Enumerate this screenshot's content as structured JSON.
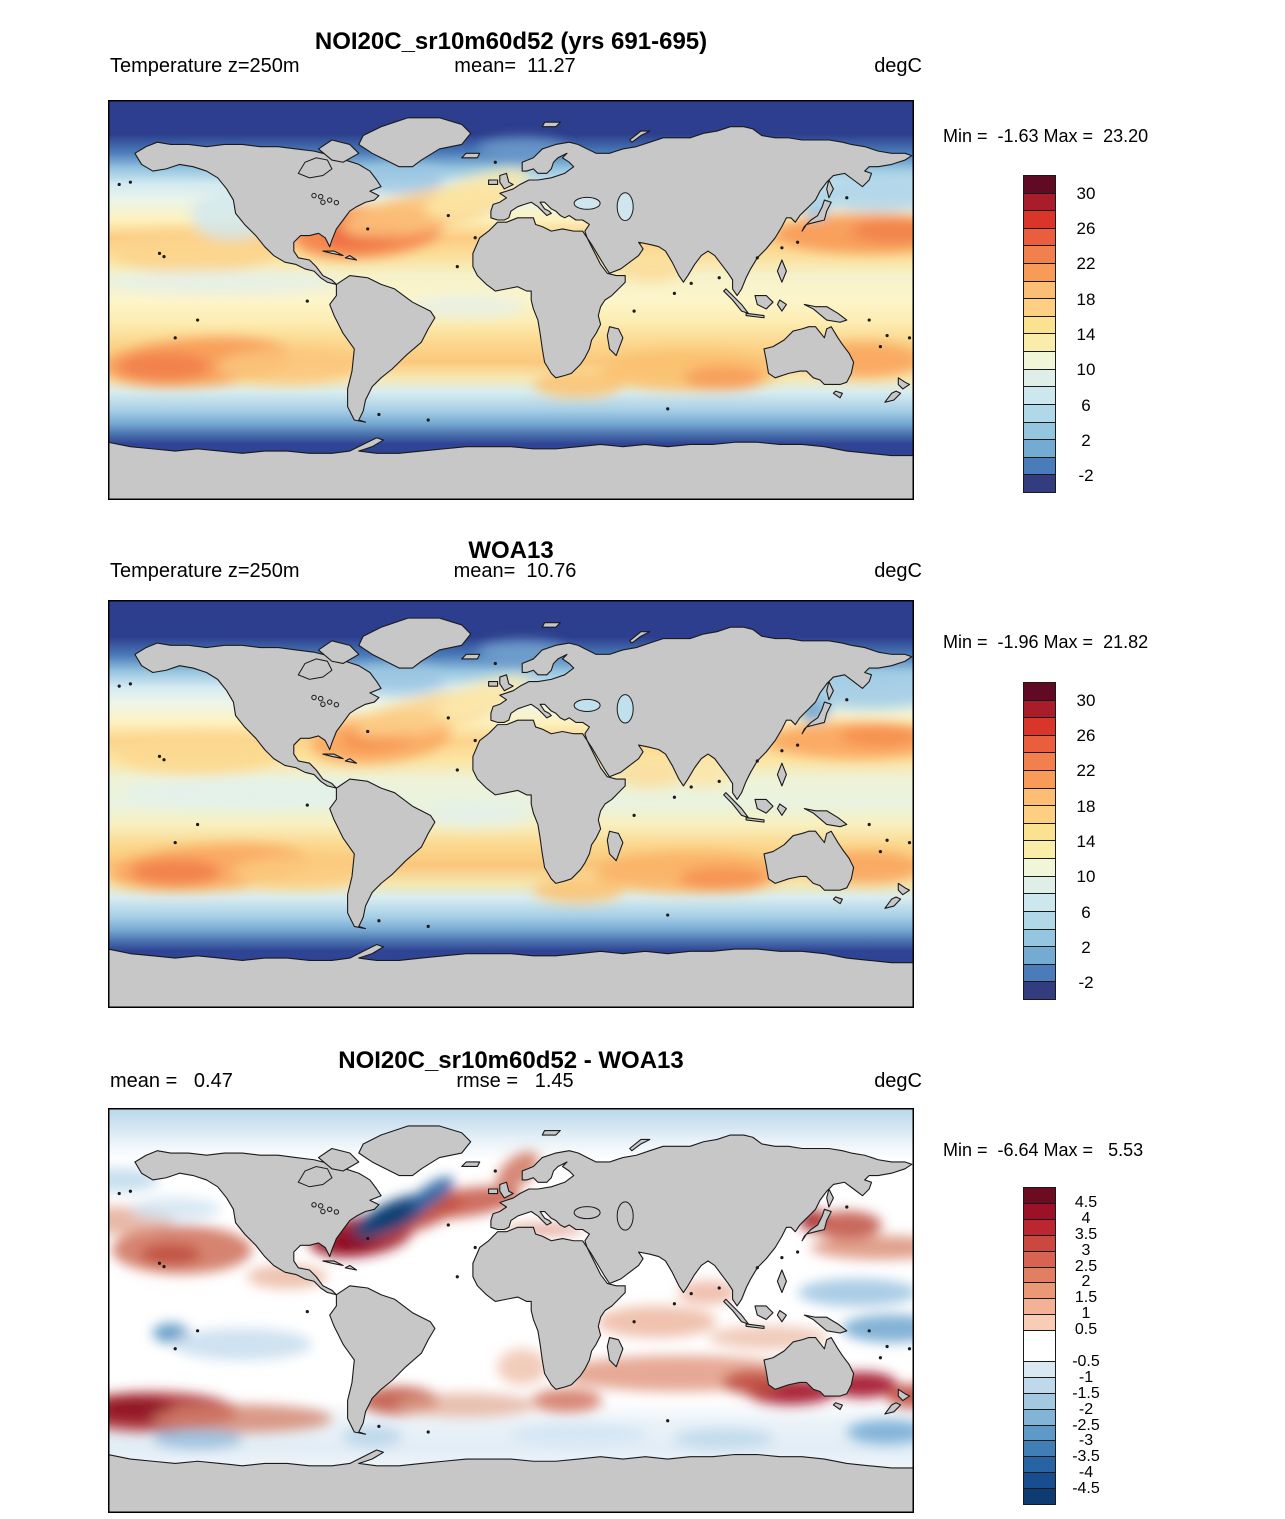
{
  "page": {
    "background": "#ffffff",
    "land_color": "#c7c7c7",
    "coast_color": "#1a1a1a"
  },
  "panels": [
    {
      "title": "NOI20C_sr10m60d52 (yrs 691-695)",
      "left_label": "Temperature z=250m",
      "center_label": "mean=  11.27",
      "right_label": "degC",
      "stats": "Min =  -1.63 Max =  23.20"
    },
    {
      "title": "WOA13",
      "left_label": "Temperature z=250m",
      "center_label": "mean=  10.76",
      "right_label": "degC",
      "stats": "Min =  -1.96 Max =  21.82"
    },
    {
      "title": "NOI20C_sr10m60d52 - WOA13",
      "left_label": "mean =   0.47",
      "center_label": "rmse =   1.45",
      "right_label": "degC",
      "stats": "Min =  -6.64 Max =   5.53"
    }
  ],
  "chart_data": [
    {
      "type": "heatmap",
      "subtype": "filled-contour-world-map",
      "projection": "equirectangular",
      "title": "NOI20C_sr10m60d52 (yrs 691-695)",
      "variable": "Temperature z=250m",
      "units": "degC",
      "stats": {
        "mean": 11.27,
        "min": -1.63,
        "max": 23.2
      },
      "colorbar": {
        "range": [
          -2,
          30
        ],
        "level_step": 2,
        "tick_labels": [
          "30",
          "26",
          "22",
          "18",
          "14",
          "10",
          "6",
          "2",
          "-2"
        ],
        "tick_slots": [
          1,
          3,
          5,
          7,
          9,
          11,
          13,
          15,
          17
        ],
        "slots": 18,
        "cells": [
          {
            "c": "#600a23",
            "h": 1
          },
          {
            "c": "#a91c29",
            "h": 1
          },
          {
            "c": "#d93528",
            "h": 1
          },
          {
            "c": "#ea5e3e",
            "h": 1
          },
          {
            "c": "#f2804d",
            "h": 1
          },
          {
            "c": "#f89a58",
            "h": 1
          },
          {
            "c": "#fcbd74",
            "h": 1
          },
          {
            "c": "#fccf83",
            "h": 1
          },
          {
            "c": "#fbe291",
            "h": 1
          },
          {
            "c": "#f9eda9",
            "h": 1
          },
          {
            "c": "#f2f6d8",
            "h": 1
          },
          {
            "c": "#dfeee7",
            "h": 1
          },
          {
            "c": "#cde7ee",
            "h": 1
          },
          {
            "c": "#b1d8e8",
            "h": 1
          },
          {
            "c": "#95c6df",
            "h": 1
          },
          {
            "c": "#74abd2",
            "h": 1
          },
          {
            "c": "#4a7cba",
            "h": 1
          },
          {
            "c": "#333c7e",
            "h": 1
          }
        ]
      }
    },
    {
      "type": "heatmap",
      "subtype": "filled-contour-world-map",
      "projection": "equirectangular",
      "title": "WOA13",
      "variable": "Temperature z=250m",
      "units": "degC",
      "stats": {
        "mean": 10.76,
        "min": -1.96,
        "max": 21.82
      },
      "colorbar": {
        "range": [
          -2,
          30
        ],
        "level_step": 2,
        "tick_labels": [
          "30",
          "26",
          "22",
          "18",
          "14",
          "10",
          "6",
          "2",
          "-2"
        ],
        "tick_slots": [
          1,
          3,
          5,
          7,
          9,
          11,
          13,
          15,
          17
        ],
        "slots": 18,
        "cells": [
          {
            "c": "#600a23",
            "h": 1
          },
          {
            "c": "#a91c29",
            "h": 1
          },
          {
            "c": "#d93528",
            "h": 1
          },
          {
            "c": "#ea5e3e",
            "h": 1
          },
          {
            "c": "#f2804d",
            "h": 1
          },
          {
            "c": "#f89a58",
            "h": 1
          },
          {
            "c": "#fcbd74",
            "h": 1
          },
          {
            "c": "#fccf83",
            "h": 1
          },
          {
            "c": "#fbe291",
            "h": 1
          },
          {
            "c": "#f9eda9",
            "h": 1
          },
          {
            "c": "#f2f6d8",
            "h": 1
          },
          {
            "c": "#dfeee7",
            "h": 1
          },
          {
            "c": "#cde7ee",
            "h": 1
          },
          {
            "c": "#b1d8e8",
            "h": 1
          },
          {
            "c": "#95c6df",
            "h": 1
          },
          {
            "c": "#74abd2",
            "h": 1
          },
          {
            "c": "#4a7cba",
            "h": 1
          },
          {
            "c": "#333c7e",
            "h": 1
          }
        ]
      }
    },
    {
      "type": "heatmap",
      "subtype": "filled-contour-difference-map",
      "projection": "equirectangular",
      "title": "NOI20C_sr10m60d52 - WOA13",
      "units": "degC",
      "stats": {
        "mean": 0.47,
        "rmse": 1.45,
        "min": -6.64,
        "max": 5.53
      },
      "colorbar": {
        "range": [
          -4.5,
          4.5
        ],
        "level_step": 0.5,
        "tick_labels": [
          "4.5",
          "4",
          "3.5",
          "3",
          "2.5",
          "2",
          "1.5",
          "1",
          "0.5",
          "-0.5",
          "-1",
          "-1.5",
          "-2",
          "-2.5",
          "-3",
          "-3.5",
          "-4",
          "-4.5"
        ],
        "tick_slots": [
          1,
          2,
          3,
          4,
          5,
          6,
          7,
          8,
          9,
          11,
          12,
          13,
          14,
          15,
          16,
          17,
          18,
          19
        ],
        "slots": 20,
        "cells": [
          {
            "c": "#6d0b21",
            "h": 1
          },
          {
            "c": "#9c1127",
            "h": 1
          },
          {
            "c": "#bb2631",
            "h": 1
          },
          {
            "c": "#ca4840",
            "h": 1
          },
          {
            "c": "#d66450",
            "h": 1
          },
          {
            "c": "#e07f62",
            "h": 1
          },
          {
            "c": "#eb9877",
            "h": 1
          },
          {
            "c": "#f3b295",
            "h": 1
          },
          {
            "c": "#f9cdb5",
            "h": 1
          },
          {
            "c": "#ffffff",
            "h": 2
          },
          {
            "c": "#d9e8f1",
            "h": 1
          },
          {
            "c": "#c0d9ea",
            "h": 1
          },
          {
            "c": "#a3c9e1",
            "h": 1
          },
          {
            "c": "#82b4d6",
            "h": 1
          },
          {
            "c": "#5d9ac7",
            "h": 1
          },
          {
            "c": "#3f7fb5",
            "h": 1
          },
          {
            "c": "#2764a4",
            "h": 1
          },
          {
            "c": "#174e90",
            "h": 1
          },
          {
            "c": "#0d3c72",
            "h": 1
          }
        ]
      }
    }
  ]
}
